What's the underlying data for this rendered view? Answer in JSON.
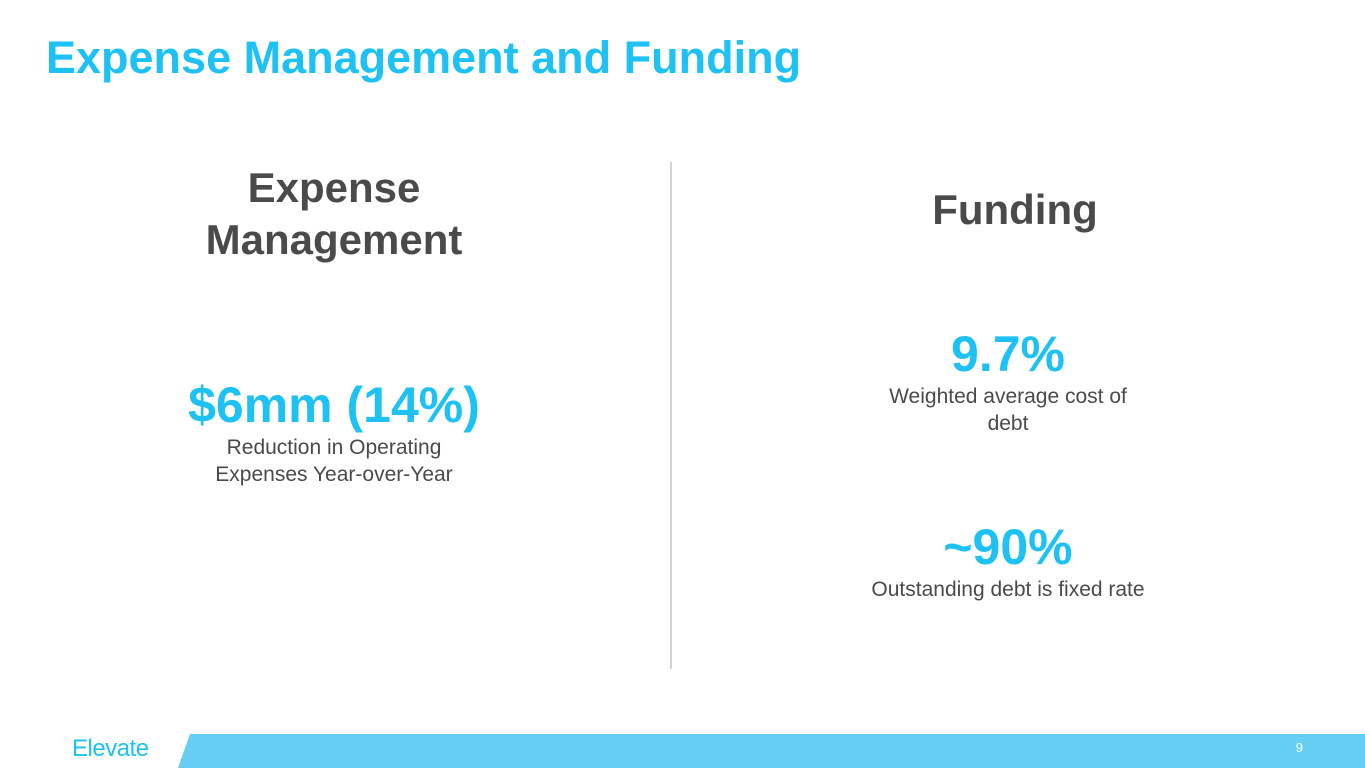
{
  "slide": {
    "title": "Expense Management and Funding",
    "page_number": "9",
    "logo_text": "Elevate",
    "accent_color": "#1ec1f3",
    "footer_bar_color": "#66cef5",
    "text_color": "#4a4a4a"
  },
  "left_column": {
    "heading": "Expense Management",
    "metric": {
      "value": "$6mm (14%)",
      "description": "Reduction in Operating Expenses Year-over-Year"
    }
  },
  "right_column": {
    "heading": "Funding",
    "metrics": [
      {
        "value": "9.7%",
        "description": "Weighted average cost of debt"
      },
      {
        "value": "~90%",
        "description": "Outstanding debt is fixed rate"
      }
    ]
  }
}
